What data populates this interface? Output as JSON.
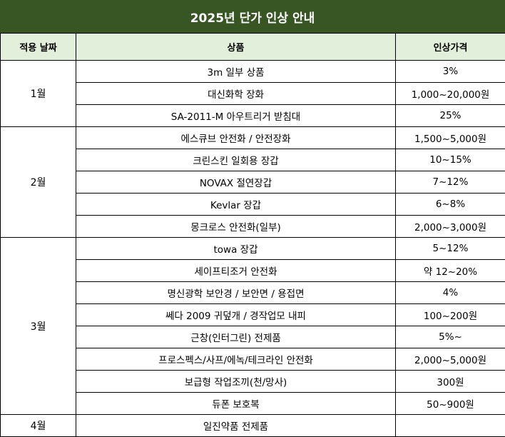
{
  "title": "2025년 단가 인상 안내",
  "headers": {
    "month": "적용 날짜",
    "product": "상품",
    "increase": "인상가격"
  },
  "groups": [
    {
      "month": "1월",
      "rows": [
        {
          "product": "3m 일부 상품",
          "increase": "3%"
        },
        {
          "product": "대신화학 장화",
          "increase": "1,000~20,000원"
        },
        {
          "product": "SA-2011-M 아우트리거 받침대",
          "increase": "25%"
        }
      ]
    },
    {
      "month": "2월",
      "rows": [
        {
          "product": "에스큐브 안전화 / 안전장화",
          "increase": "1,500~5,000원"
        },
        {
          "product": "크린스킨 일회용 장갑",
          "increase": "10~15%"
        },
        {
          "product": "NOVAX 절연장갑",
          "increase": "7~12%"
        },
        {
          "product": "Kevlar 장갑",
          "increase": "6~8%"
        },
        {
          "product": "몽크로스 안전화(일부)",
          "increase": "2,000~3,000원"
        }
      ]
    },
    {
      "month": "3월",
      "rows": [
        {
          "product": "towa 장갑",
          "increase": "5~12%"
        },
        {
          "product": "세이프티조거 안전화",
          "increase": "약 12~20%"
        },
        {
          "product": "명신광학 보안경 / 보안면 / 용접면",
          "increase": "4%"
        },
        {
          "product": "쎄다 2009 귀덮개 / 경작업모 내피",
          "increase": "100~200원"
        },
        {
          "product": "근창(인터그린) 전제품",
          "increase": "5%~"
        },
        {
          "product": "프로스펙스/사프/에녹/테크라인 안전화",
          "increase": "2,000~5,000원"
        },
        {
          "product": "보급형 작업조끼(천/망사)",
          "increase": "300원"
        },
        {
          "product": "듀폰 보호복",
          "increase": "50~900원"
        }
      ]
    },
    {
      "month": "4월",
      "rows": [
        {
          "product": "일진약품 전제품",
          "increase": ""
        }
      ]
    }
  ]
}
